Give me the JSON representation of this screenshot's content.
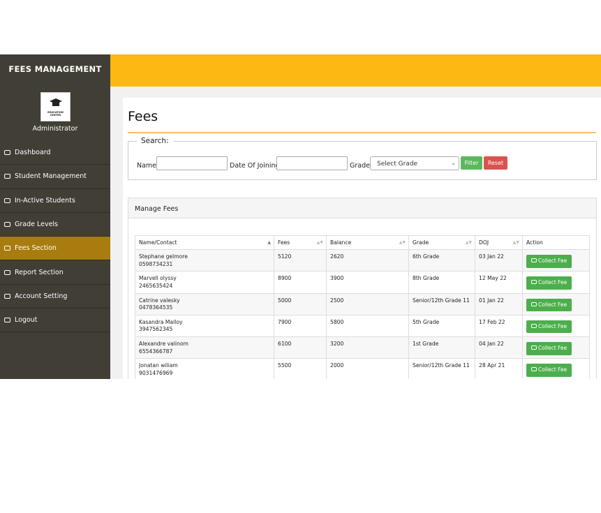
{
  "sidebar": {
    "title": "FEES MANAGEMENT",
    "logo": {
      "line1": "EDUCATION",
      "line2": "CENTER"
    },
    "role": "Administrator",
    "menu": [
      "Dashboard",
      "Student Management",
      "In-Active Students",
      "Grade Levels",
      "Fees Section",
      "Report Section",
      "Account Setting",
      "Logout"
    ]
  },
  "main": {
    "title": "Fees",
    "search": {
      "legend": "Search:",
      "name_label": "Name",
      "doj_label": "Date Of Joining",
      "grade_label": "Grade",
      "grade_placeholder": "Select Grade",
      "filter": "Filter",
      "reset": "Reset"
    },
    "panel_title": "Manage Fees",
    "table": {
      "columns": [
        "Name/Contact",
        "Fees",
        "Balance",
        "Grade",
        "DOJ",
        "Action"
      ],
      "rows": [
        {
          "name": "Stephane gelmore",
          "contact": "0598734231",
          "fees": 5120,
          "balance": 2620,
          "grade": "6th Grade",
          "doj": "03 Jan 22",
          "action": "Collect Fee"
        },
        {
          "name": "Marvell olyssy",
          "contact": "2465635424",
          "fees": 8900,
          "balance": 3900,
          "grade": "8th Grade",
          "doj": "12 May 22",
          "action": "Collect Fee"
        },
        {
          "name": "Catrine valesky",
          "contact": "0478364535",
          "fees": 5000,
          "balance": 2500,
          "grade": "Senior/12th Grade 11",
          "doj": "01 Jan 22",
          "action": "Collect Fee"
        },
        {
          "name": "Kasandra Malloy",
          "contact": "3947562345",
          "fees": 7900,
          "balance": 5800,
          "grade": "5th Grade",
          "doj": "17 Feb 22",
          "action": "Collect Fee"
        },
        {
          "name": "Alexandre valinom",
          "contact": "6554366787",
          "fees": 6100,
          "balance": 3200,
          "grade": "1st Grade",
          "doj": "04 Jan 22",
          "action": "Collect Fee"
        },
        {
          "name": "Jonatan wiliam",
          "contact": "9031476969",
          "fees": 5500,
          "balance": 2000,
          "grade": "Senior/12th Grade 11",
          "doj": "28 Apr 21",
          "action": "Collect Fee"
        }
      ]
    }
  }
}
